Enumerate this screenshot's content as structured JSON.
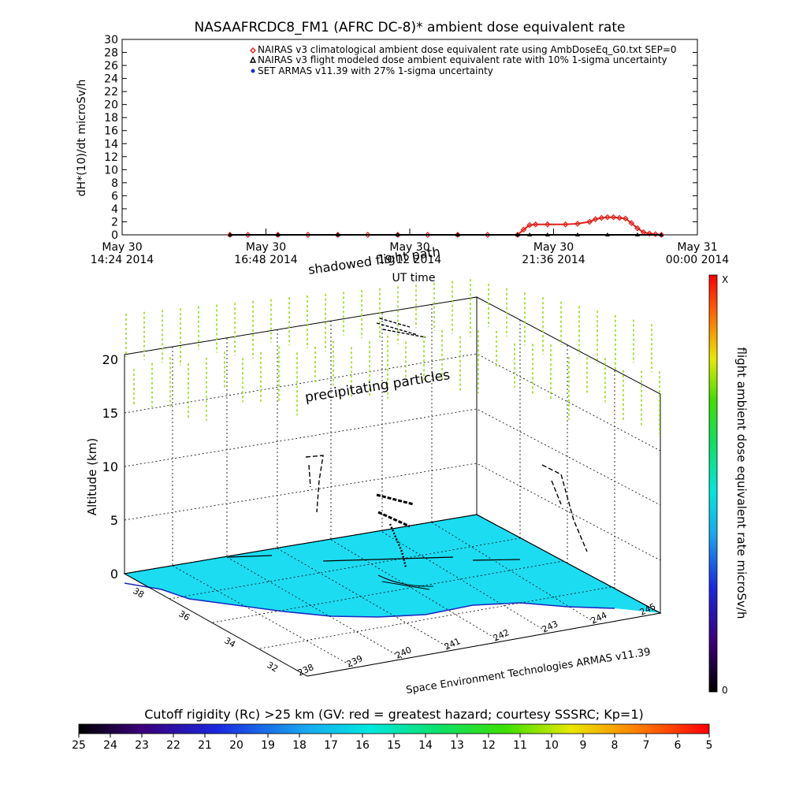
{
  "chart_data": [
    {
      "type": "line",
      "title": "NASAAFRCDC8_FM1 (AFRC DC-8)* ambient dose equivalent rate",
      "xlabel": "UT time",
      "ylabel": "dH*(10)/dt microSv/h",
      "ylim": [
        0,
        30
      ],
      "y_ticks": [
        "0",
        "2",
        "4",
        "6",
        "8",
        "10",
        "12",
        "14",
        "16",
        "18",
        "20",
        "22",
        "24",
        "26",
        "28",
        "30"
      ],
      "x_ticks": [
        {
          "date": "May 30",
          "time": "14:24 2014"
        },
        {
          "date": "May 30",
          "time": "16:48 2014"
        },
        {
          "date": "May 30",
          "time": "19:12 2014"
        },
        {
          "date": "May 30",
          "time": "21:36 2014"
        },
        {
          "date": "May 31",
          "time": "00:00 2014"
        }
      ],
      "legend": [
        {
          "marker": "diamond",
          "color": "#e0201a",
          "label": "NAIRAS v3 climatological ambient dose equivalent rate using AmbDoseEq_G0.txt SEP=0"
        },
        {
          "marker": "triangle",
          "color": "#000000",
          "label": "NAIRAS v3 flight modeled dose ambient equivalent rate with 10% 1-sigma uncertainty"
        },
        {
          "marker": "circle",
          "color": "#1530d0",
          "label": "SET ARMAS v11.39 with 27% 1-sigma uncertainty"
        }
      ],
      "legend_position": "top-right",
      "series": [
        {
          "name": "NAIRAS v3 climatological ambient dose equivalent rate using AmbDoseEq_G0.txt SEP=0",
          "color": "#e0201a",
          "x_hours": [
            16.2,
            16.5,
            17.0,
            17.5,
            18.0,
            18.5,
            19.0,
            19.5,
            20.0,
            20.5,
            21.0,
            21.1,
            21.2,
            21.3,
            21.5,
            21.8,
            22.0,
            22.2,
            22.3,
            22.4,
            22.5,
            22.6,
            22.7,
            22.8,
            22.9,
            23.0,
            23.1,
            23.2,
            23.3,
            23.4
          ],
          "values": [
            0,
            0,
            0,
            0,
            0,
            0,
            0,
            0,
            0,
            0,
            0,
            0.8,
            1.5,
            1.6,
            1.6,
            1.6,
            1.7,
            2.0,
            2.4,
            2.6,
            2.7,
            2.7,
            2.6,
            2.5,
            1.8,
            1.0,
            0.4,
            0.2,
            0.1,
            0
          ]
        },
        {
          "name": "NAIRAS v3 flight modeled dose ambient equivalent rate with 10% 1-sigma uncertainty",
          "color": "#000000",
          "x_hours": [
            16.2,
            17.0,
            18.0,
            19.0,
            20.0,
            21.0,
            21.2,
            21.5,
            22.0,
            22.5,
            23.0,
            23.4
          ],
          "values": [
            0,
            0,
            0,
            0,
            0,
            0,
            0,
            0,
            0,
            0,
            0,
            0
          ]
        }
      ]
    },
    {
      "type": "scatter",
      "title": "",
      "zlabel": "Altitude (km)",
      "z_ticks": [
        "0",
        "5",
        "10",
        "15",
        "20"
      ],
      "lat_ticks": [
        "32",
        "34",
        "36",
        "38"
      ],
      "lon_ticks": [
        "238",
        "239",
        "240",
        "241",
        "242",
        "243",
        "244",
        "245"
      ],
      "annotations": [
        "shadowed flight path",
        "precipitating particles"
      ],
      "credit": "Space Environment Technologies ARMAS v11.39",
      "colorbar": {
        "label": "flight ambient dose equivalent rate microSv/h",
        "min_label": "0",
        "max_label": "X",
        "orientation": "vertical"
      }
    },
    {
      "type": "heatmap",
      "title": "Cutoff rigidity (Rc) >25 km (GV: red = greatest hazard; courtesy SSSRC; Kp=1)",
      "colorbar_ticks": [
        "25",
        "24",
        "23",
        "22",
        "21",
        "20",
        "19",
        "18",
        "17",
        "16",
        "15",
        "14",
        "13",
        "12",
        "11",
        "10",
        "9",
        "8",
        "7",
        "6",
        "5"
      ]
    }
  ]
}
